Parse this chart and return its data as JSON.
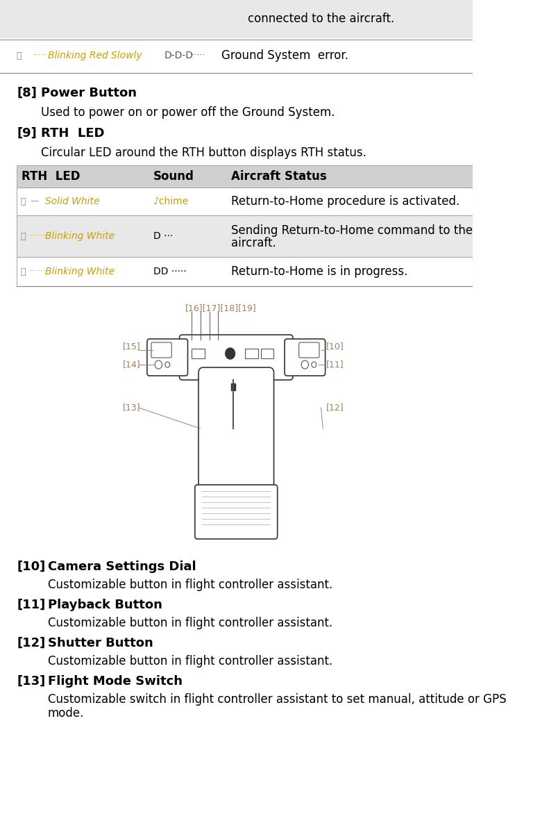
{
  "bg_color": "#ffffff",
  "top_text": "connected to the aircraft.",
  "row7_led": "Ⓡ ····· Blinking Red Slowly",
  "row7_sound": "D-D-D·····",
  "row7_status": "Ground System  error.",
  "section8_num": "[8]",
  "section8_title": "Power Button",
  "section8_desc": "Used to power on or power off the Ground System.",
  "section9_num": "[9]",
  "section9_title": "RTH  LED",
  "section9_desc": "Circular LED around the RTH button displays RTH status.",
  "table_header": [
    "RTH  LED",
    "Sound",
    "Aircraft Status"
  ],
  "table_rows": [
    {
      "led": "Solid White",
      "led_icon": "W",
      "led_dash": "—",
      "led_color": "#c8a000",
      "sound": "♪chime",
      "sound_color": "#c8a000",
      "status": "Return-to-Home procedure is activated.",
      "row_bg": "#ffffff"
    },
    {
      "led": "Blinking White",
      "led_icon": "W",
      "led_dash": "······",
      "led_color": "#c8a000",
      "sound": "D ···",
      "sound_color": "#000000",
      "status": "Sending Return-to-Home command to the\naircraft.",
      "row_bg": "#e8e8e8"
    },
    {
      "led": "Blinking White",
      "led_icon": "W",
      "led_dash": "······",
      "led_color": "#c8a000",
      "sound": "DD ·····",
      "sound_color": "#000000",
      "status": "Return-to-Home is in progress.",
      "row_bg": "#ffffff"
    }
  ],
  "section10_num": "[10]",
  "section10_title": "Camera Settings Dial",
  "section10_desc": "Customizable button in flight controller assistant.",
  "section11_num": "[11]",
  "section11_title": "Playback Button",
  "section11_desc": "Customizable button in flight controller assistant.",
  "section12_num": "[12]",
  "section12_title": "Shutter Button",
  "section12_desc": "Customizable button in flight controller assistant.",
  "section13_num": "[13]",
  "section13_title": "Flight Mode Switch",
  "section13_desc": "Customizable switch in flight controller assistant to set manual, attitude or GPS\nmode.",
  "header_bg": "#d0d0d0",
  "even_row_bg": "#e8e8e8",
  "odd_row_bg": "#ffffff",
  "gray_bg_top": "#e8e8e8",
  "led_orange": "#c8a000",
  "text_color": "#000000",
  "label_color": "#a08060"
}
